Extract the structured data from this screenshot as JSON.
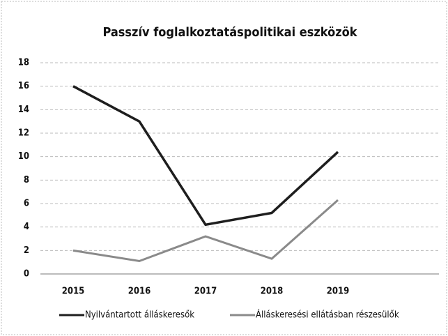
{
  "chart_data": {
    "type": "line",
    "title": "Passzív foglalkoztatáspolitikai eszközök",
    "categories": [
      "2015",
      "2016",
      "2017",
      "2018",
      "2019"
    ],
    "series": [
      {
        "name": "Nyilvántartott álláskeresők",
        "color": "#1e1e1e",
        "values": [
          16,
          13,
          4.2,
          5.2,
          10.4
        ]
      },
      {
        "name": "Álláskeresési ellátásban részesülők",
        "color": "#8a8a8a",
        "values": [
          2,
          1.1,
          3.2,
          1.3,
          6.3
        ]
      }
    ],
    "ylim": [
      0,
      18
    ],
    "yticks": [
      0,
      2,
      4,
      6,
      8,
      10,
      12,
      14,
      16,
      18
    ],
    "grid": true,
    "legend": "bottom"
  }
}
